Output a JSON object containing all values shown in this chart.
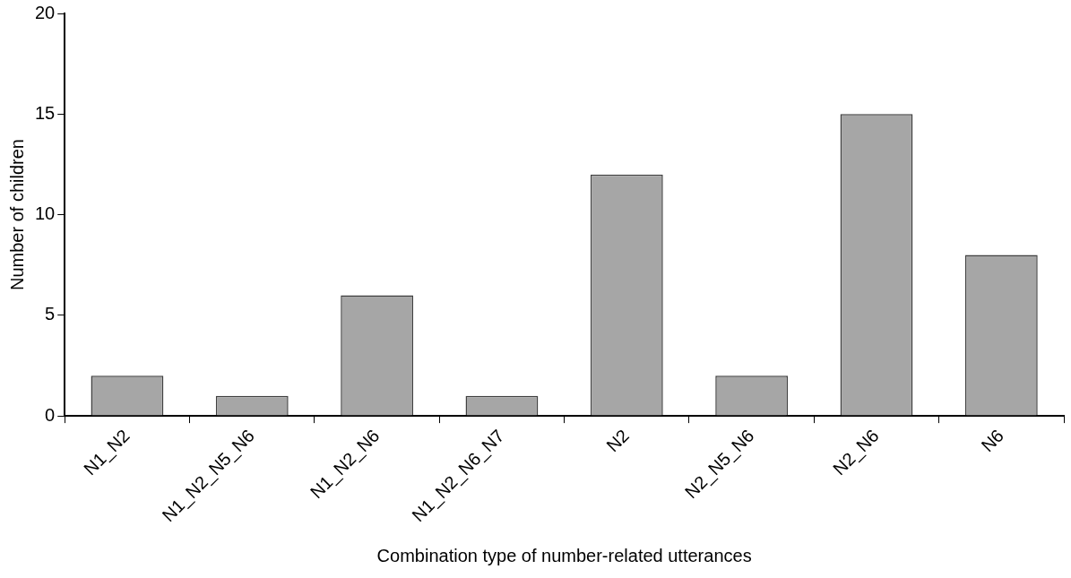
{
  "chart_data": {
    "type": "bar",
    "xlabel": "Combination type of number-related utterances",
    "ylabel": "Number of children",
    "categories": [
      "N1_N2",
      "N1_N2_N5_N6",
      "N1_N2_N6",
      "N1_N2_N6_N7",
      "N2",
      "N2_N5_N6",
      "N2_N6",
      "N6"
    ],
    "values": [
      2,
      1,
      6,
      1,
      12,
      2,
      15,
      8
    ],
    "color": "#a6a6a6",
    "ylim": [
      0,
      20
    ],
    "yticks": [
      0,
      5,
      10,
      15,
      20
    ],
    "grid": false,
    "legend": false
  }
}
